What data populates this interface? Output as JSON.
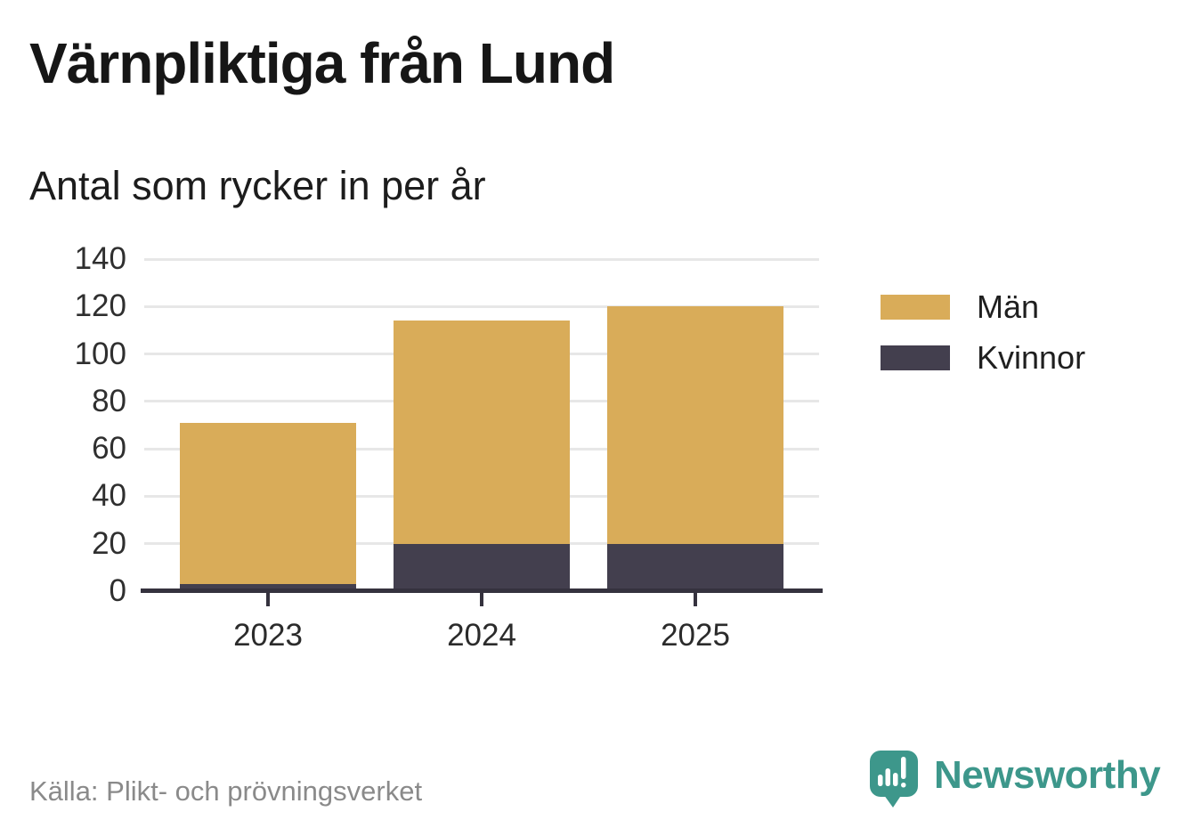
{
  "chart_data": {
    "type": "bar",
    "stacked": true,
    "title": "Värnpliktiga från Lund",
    "subtitle": "Antal som rycker in per år",
    "categories": [
      "2023",
      "2024",
      "2025"
    ],
    "series": [
      {
        "name": "Män",
        "color": "#D9AC59",
        "values": [
          68,
          94,
          100
        ]
      },
      {
        "name": "Kvinnor",
        "color": "#433F4E",
        "values": [
          3,
          20,
          20
        ]
      }
    ],
    "stack_bottom_to_top": [
      "Kvinnor",
      "Män"
    ],
    "stacked_totals": [
      71,
      114,
      120
    ],
    "xlabel": "",
    "ylabel": "",
    "ylim": [
      0,
      140
    ],
    "y_ticks": [
      0,
      20,
      40,
      60,
      80,
      100,
      120,
      140
    ],
    "grid": "horizontal",
    "legend_position": "right"
  },
  "footer": {
    "source": "Källa: Plikt- och prövningsverket",
    "brand": "Newsworthy"
  },
  "colors": {
    "men_gold": "#D9AC59",
    "women_dark": "#433F4E",
    "brand_teal": "#3D978B",
    "axis": "#35323E",
    "gridline": "#E7E7E7",
    "title_text": "#161616",
    "muted_text": "#8A8A8A"
  }
}
